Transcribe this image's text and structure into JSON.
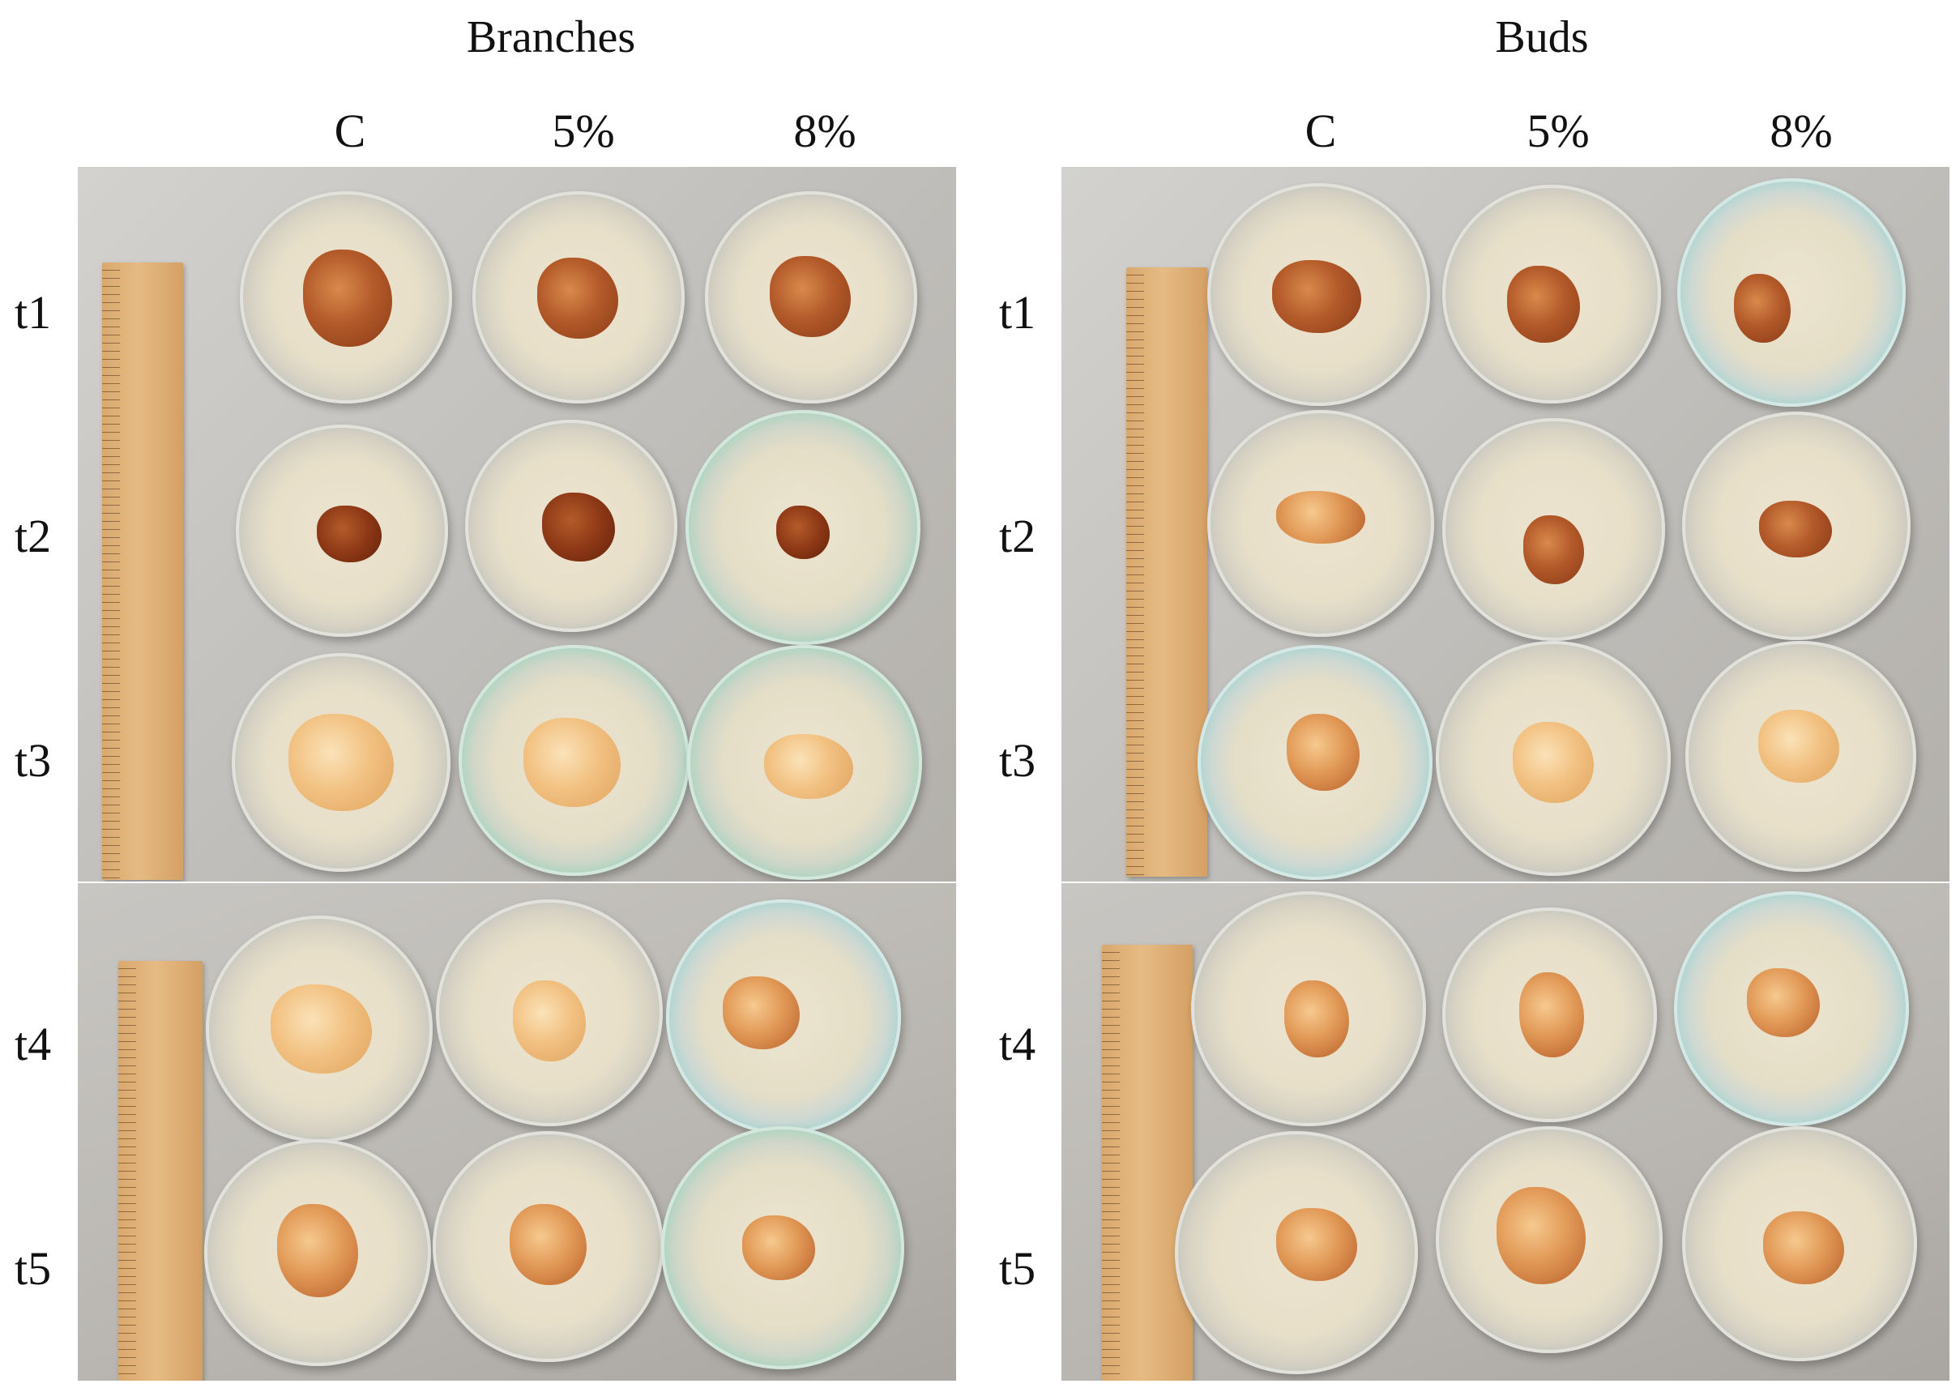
{
  "figure": {
    "panels": [
      {
        "title": "Branches",
        "columns": [
          "C",
          "5%",
          "8%"
        ],
        "rows": [
          "t1",
          "t2",
          "t3",
          "t4",
          "t5"
        ]
      },
      {
        "title": "Buds",
        "columns": [
          "C",
          "5%",
          "8%"
        ],
        "rows": [
          "t1",
          "t2",
          "t3",
          "t4",
          "t5"
        ]
      }
    ]
  }
}
